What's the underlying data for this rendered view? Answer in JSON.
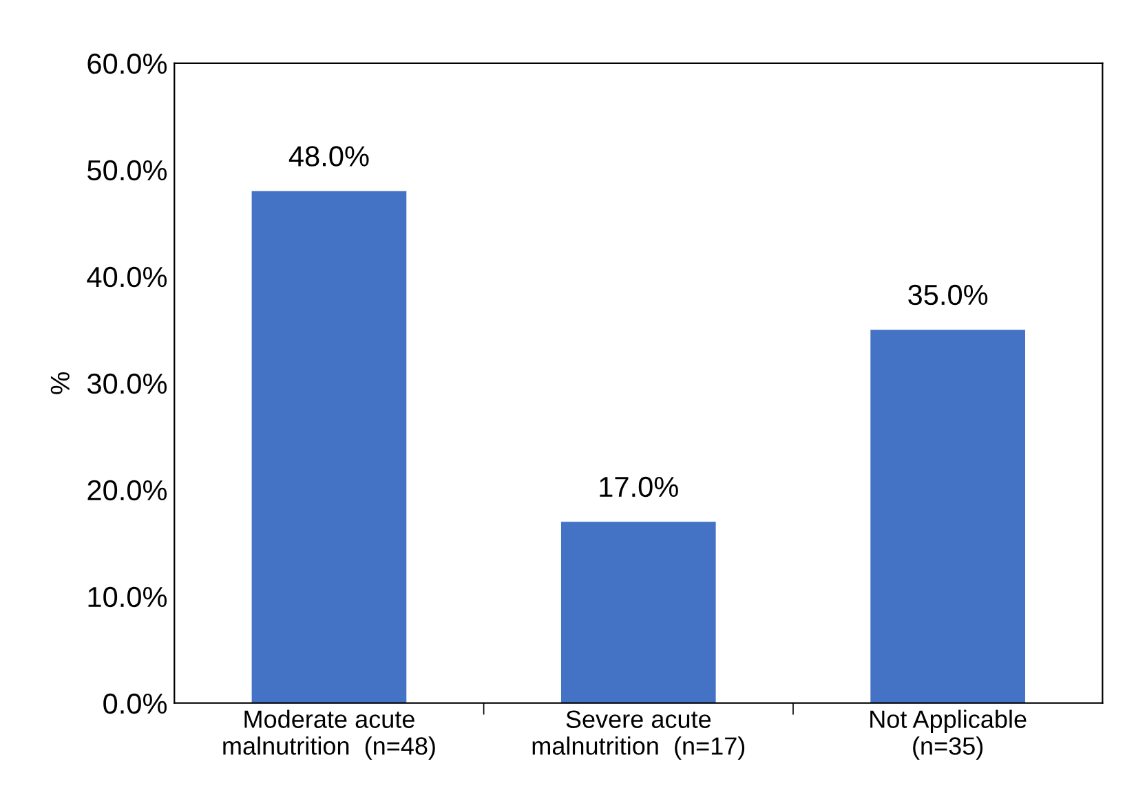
{
  "chart_data": {
    "type": "bar",
    "ylabel": "%",
    "categories": [
      "Moderate acute\nmalnutrition  (n=48)",
      "Severe acute\nmalnutrition  (n=17)",
      "Not Applicable\n(n=35)"
    ],
    "values": [
      48.0,
      17.0,
      35.0
    ],
    "color": "#4472c4",
    "value_labels": [
      "48.0%",
      "17.0%",
      "35.0%"
    ],
    "ylim": [
      0,
      60
    ],
    "yticks": [
      {
        "value": 0,
        "label": "0.0%"
      },
      {
        "value": 10,
        "label": "10.0%"
      },
      {
        "value": 20,
        "label": "20.0%"
      },
      {
        "value": 30,
        "label": "30.0%"
      },
      {
        "value": 40,
        "label": "40.0%"
      },
      {
        "value": 50,
        "label": "50.0%"
      },
      {
        "value": 60,
        "label": "60.0%"
      }
    ],
    "grid": false
  }
}
